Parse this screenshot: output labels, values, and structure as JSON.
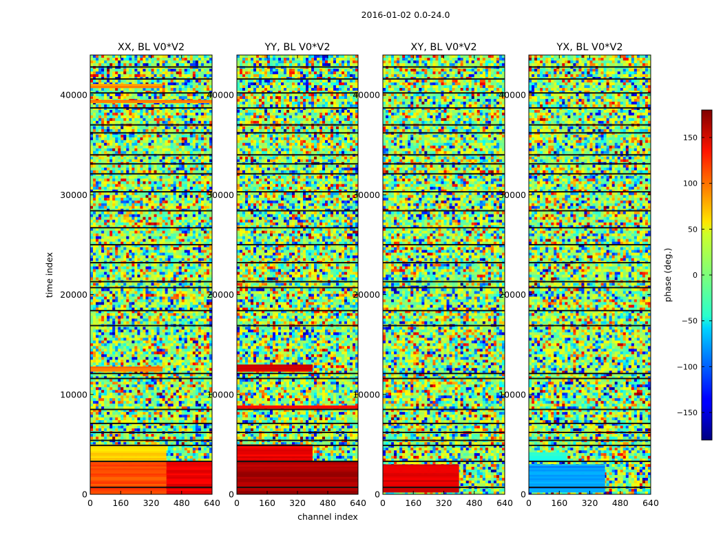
{
  "chart_data": {
    "type": "heatmap",
    "suptitle": "2016-01-02 0.0-24.0",
    "xlabel": "channel index",
    "ylabel": "time index",
    "xlim": [
      0,
      640
    ],
    "ylim": [
      0,
      44000
    ],
    "x_ticks": [
      0,
      160,
      320,
      480,
      640
    ],
    "x_tick_labels": [
      "0",
      "160",
      "320",
      "480",
      "640"
    ],
    "y_ticks": [
      0,
      10000,
      20000,
      30000,
      40000
    ],
    "y_tick_labels": [
      "0",
      "10000",
      "20000",
      "30000",
      "40000"
    ],
    "colormap": "jet",
    "colorbar": {
      "label": "phase (deg.)",
      "range": [
        -180,
        180
      ],
      "ticks": [
        -150,
        -100,
        -50,
        0,
        50,
        100,
        150
      ],
      "tick_labels": [
        "−150",
        "−100",
        "−50",
        "0",
        "50",
        "100",
        "150"
      ]
    },
    "gaps_time_index": [
      700,
      3300,
      4900,
      5400,
      6200,
      7100,
      8500,
      11600,
      12100,
      16900,
      18400,
      20700,
      21300,
      23200,
      25000,
      26700,
      28400,
      30300,
      32100,
      33100,
      34000,
      36200,
      37000,
      38700,
      40200,
      41600,
      42800
    ],
    "panels": [
      {
        "title": "XX, BL V0*V2",
        "mean_phase_bands": [
          {
            "time_index": [
              0,
              3300
            ],
            "channel_index": [
              0,
              400
            ],
            "phase_deg": 110
          },
          {
            "time_index": [
              0,
              3300
            ],
            "channel_index": [
              400,
              640
            ],
            "phase_deg": 140
          },
          {
            "time_index": [
              3300,
              5000
            ],
            "channel_index": [
              0,
              400
            ],
            "phase_deg": 60
          },
          {
            "time_index": [
              12300,
              12800
            ],
            "channel_index": [
              0,
              380
            ],
            "phase_deg": 90
          },
          {
            "time_index": [
              39200,
              39500
            ],
            "channel_index": [
              0,
              640
            ],
            "phase_deg": 90
          },
          {
            "time_index": [
              40700,
              41100
            ],
            "channel_index": [
              0,
              380
            ],
            "phase_deg": 80
          }
        ]
      },
      {
        "title": "YY, BL V0*V2",
        "mean_phase_bands": [
          {
            "time_index": [
              0,
              3300
            ],
            "channel_index": [
              0,
              640
            ],
            "phase_deg": 165
          },
          {
            "time_index": [
              3300,
              5000
            ],
            "channel_index": [
              0,
              400
            ],
            "phase_deg": 140
          },
          {
            "time_index": [
              12300,
              13000
            ],
            "channel_index": [
              0,
              400
            ],
            "phase_deg": 150
          },
          {
            "time_index": [
              8600,
              8900
            ],
            "channel_index": [
              0,
              640
            ],
            "phase_deg": 140
          }
        ]
      },
      {
        "title": "XY, BL V0*V2",
        "mean_phase_bands": [
          {
            "time_index": [
              200,
              3000
            ],
            "channel_index": [
              0,
              400
            ],
            "phase_deg": 145
          }
        ]
      },
      {
        "title": "YX, BL V0*V2",
        "mean_phase_bands": [
          {
            "time_index": [
              200,
              3000
            ],
            "channel_index": [
              0,
              400
            ],
            "phase_deg": -80
          },
          {
            "time_index": [
              3300,
              4200
            ],
            "channel_index": [
              0,
              200
            ],
            "phase_deg": -30
          }
        ]
      }
    ]
  }
}
